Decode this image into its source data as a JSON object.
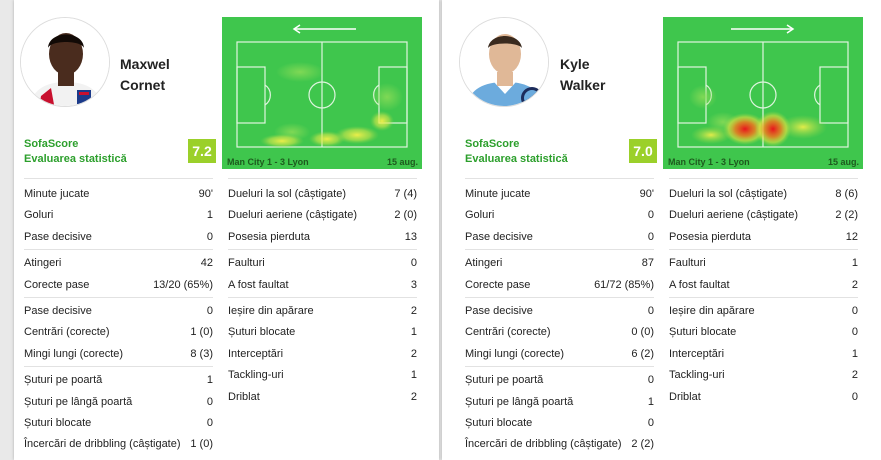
{
  "players": [
    {
      "first_name": "Maxwel",
      "last_name": "Cornet",
      "rating_label_1": "SofaScore",
      "rating_label_2": "Evaluarea statistică",
      "rating": "7.2",
      "match": "Man City 1 - 3 Lyon",
      "date": "15 aug.",
      "direction": "left",
      "left_groups": [
        [
          {
            "label": "Minute jucate",
            "value": "90'"
          },
          {
            "label": "Goluri",
            "value": "1"
          },
          {
            "label": "Pase decisive",
            "value": "0"
          }
        ],
        [
          {
            "label": "Atingeri",
            "value": "42"
          },
          {
            "label": "Corecte pase",
            "value": "13/20 (65%)"
          }
        ],
        [
          {
            "label": "Pase decisive",
            "value": "0"
          },
          {
            "label": "Centrări (corecte)",
            "value": "1 (0)"
          },
          {
            "label": "Mingi lungi (corecte)",
            "value": "8 (3)"
          }
        ],
        [
          {
            "label": "Șuturi pe poartă",
            "value": "1"
          },
          {
            "label": "Șuturi pe lângă poartă",
            "value": "0"
          },
          {
            "label": "Șuturi blocate",
            "value": "0"
          },
          {
            "label": "Încercări de dribbling (câștigate)",
            "value": "1 (0)"
          }
        ]
      ],
      "right_groups": [
        [
          {
            "label": "Dueluri la sol (câștigate)",
            "value": "7 (4)"
          },
          {
            "label": "Dueluri aeriene (câștigate)",
            "value": "2 (0)"
          },
          {
            "label": "Posesia pierduta",
            "value": "13"
          }
        ],
        [
          {
            "label": "Faulturi",
            "value": "0"
          },
          {
            "label": "A fost faultat",
            "value": "3"
          }
        ],
        [
          {
            "label": "Ieșire din apărare",
            "value": "2"
          },
          {
            "label": "Șuturi blocate",
            "value": "1"
          },
          {
            "label": "Interceptări",
            "value": "2"
          },
          {
            "label": "Tackling-uri",
            "value": "1"
          },
          {
            "label": "Driblat",
            "value": "2"
          }
        ]
      ]
    },
    {
      "first_name": "Kyle",
      "last_name": "Walker",
      "rating_label_1": "SofaScore",
      "rating_label_2": "Evaluarea statistică",
      "rating": "7.0",
      "match": "Man City 1 - 3 Lyon",
      "date": "15 aug.",
      "direction": "right",
      "left_groups": [
        [
          {
            "label": "Minute jucate",
            "value": "90'"
          },
          {
            "label": "Goluri",
            "value": "0"
          },
          {
            "label": "Pase decisive",
            "value": "0"
          }
        ],
        [
          {
            "label": "Atingeri",
            "value": "87"
          },
          {
            "label": "Corecte pase",
            "value": "61/72 (85%)"
          }
        ],
        [
          {
            "label": "Pase decisive",
            "value": "0"
          },
          {
            "label": "Centrări (corecte)",
            "value": "0 (0)"
          },
          {
            "label": "Mingi lungi (corecte)",
            "value": "6 (2)"
          }
        ],
        [
          {
            "label": "Șuturi pe poartă",
            "value": "0"
          },
          {
            "label": "Șuturi pe lângă poartă",
            "value": "1"
          },
          {
            "label": "Șuturi blocate",
            "value": "0"
          },
          {
            "label": "Încercări de dribbling (câștigate)",
            "value": "2 (2)"
          }
        ]
      ],
      "right_groups": [
        [
          {
            "label": "Dueluri la sol (câștigate)",
            "value": "8 (6)"
          },
          {
            "label": "Dueluri aeriene (câștigate)",
            "value": "2 (2)"
          },
          {
            "label": "Posesia pierduta",
            "value": "12"
          }
        ],
        [
          {
            "label": "Faulturi",
            "value": "1"
          },
          {
            "label": "A fost faultat",
            "value": "2"
          }
        ],
        [
          {
            "label": "Ieșire din apărare",
            "value": "0"
          },
          {
            "label": "Șuturi blocate",
            "value": "0"
          },
          {
            "label": "Interceptări",
            "value": "1"
          },
          {
            "label": "Tackling-uri",
            "value": "2"
          },
          {
            "label": "Driblat",
            "value": "0"
          }
        ]
      ]
    }
  ]
}
